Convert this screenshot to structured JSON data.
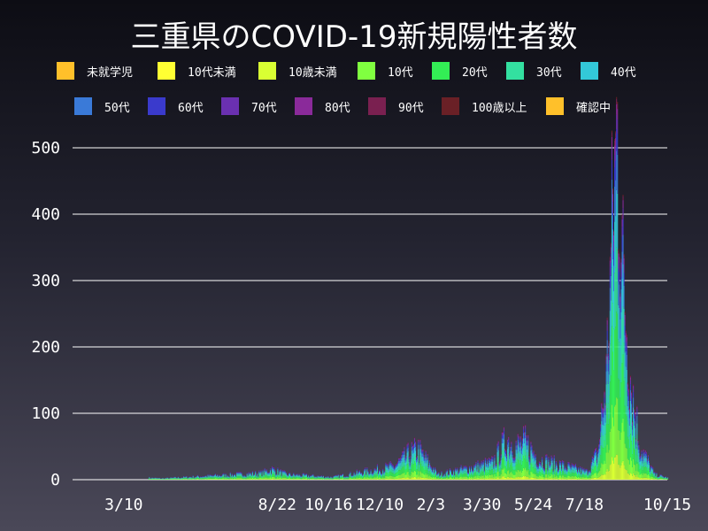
{
  "chart_data": {
    "type": "bar",
    "stacked": true,
    "title": "三重県のCOVID-19新規陽性者数",
    "xlabel": "",
    "ylabel": "",
    "ylim": [
      0,
      520
    ],
    "yticks": [
      0,
      100,
      200,
      300,
      400,
      500
    ],
    "grid": true,
    "legend_placement": "top",
    "x_start": "2020-01-15",
    "x_end": "2021-10-15",
    "xtick_labels": [
      {
        "date": "2020-03-10",
        "label": "3/10"
      },
      {
        "date": "2020-08-22",
        "label": "8/22"
      },
      {
        "date": "2020-10-16",
        "label": "10/16"
      },
      {
        "date": "2020-12-10",
        "label": "12/10"
      },
      {
        "date": "2021-02-03",
        "label": "2/3"
      },
      {
        "date": "2021-03-30",
        "label": "3/30"
      },
      {
        "date": "2021-05-24",
        "label": "5/24"
      },
      {
        "date": "2021-07-18",
        "label": "7/18"
      },
      {
        "date": "2021-10-15",
        "label": "10/15"
      }
    ],
    "series": [
      {
        "name": "未就学児",
        "color": "#ffc02a"
      },
      {
        "name": "10代未満",
        "color": "#ffff33"
      },
      {
        "name": "10歳未満",
        "color": "#d9ff33"
      },
      {
        "name": "10代",
        "color": "#80ff40"
      },
      {
        "name": "20代",
        "color": "#33ee55"
      },
      {
        "name": "30代",
        "color": "#33e0a0"
      },
      {
        "name": "40代",
        "color": "#33c8d8"
      },
      {
        "name": "50代",
        "color": "#3a7ad8"
      },
      {
        "name": "60代",
        "color": "#3a3acc"
      },
      {
        "name": "70代",
        "color": "#6a30b0"
      },
      {
        "name": "80代",
        "color": "#8a2a9a"
      },
      {
        "name": "90代",
        "color": "#7a2050"
      },
      {
        "name": "100歳以上",
        "color": "#6a2026"
      },
      {
        "name": "確認中",
        "color": "#ffc02a"
      }
    ],
    "daily_totals_approx": [
      {
        "date": "2020-04-05",
        "value": 3
      },
      {
        "date": "2020-04-20",
        "value": 2
      },
      {
        "date": "2020-08-05",
        "value": 10
      },
      {
        "date": "2020-08-15",
        "value": 16
      },
      {
        "date": "2020-09-01",
        "value": 8
      },
      {
        "date": "2020-10-20",
        "value": 4
      },
      {
        "date": "2020-12-01",
        "value": 14
      },
      {
        "date": "2020-12-25",
        "value": 20
      },
      {
        "date": "2021-01-10",
        "value": 38
      },
      {
        "date": "2021-01-20",
        "value": 45
      },
      {
        "date": "2021-02-10",
        "value": 8
      },
      {
        "date": "2021-04-10",
        "value": 25
      },
      {
        "date": "2021-04-25",
        "value": 60
      },
      {
        "date": "2021-05-05",
        "value": 50
      },
      {
        "date": "2021-05-15",
        "value": 55
      },
      {
        "date": "2021-05-30",
        "value": 30
      },
      {
        "date": "2021-07-20",
        "value": 12
      },
      {
        "date": "2021-08-01",
        "value": 40
      },
      {
        "date": "2021-08-10",
        "value": 150
      },
      {
        "date": "2021-08-18",
        "value": 420
      },
      {
        "date": "2021-08-22",
        "value": 500
      },
      {
        "date": "2021-08-28",
        "value": 300
      },
      {
        "date": "2021-09-05",
        "value": 150
      },
      {
        "date": "2021-09-15",
        "value": 50
      },
      {
        "date": "2021-10-01",
        "value": 8
      },
      {
        "date": "2021-10-15",
        "value": 3
      }
    ]
  }
}
